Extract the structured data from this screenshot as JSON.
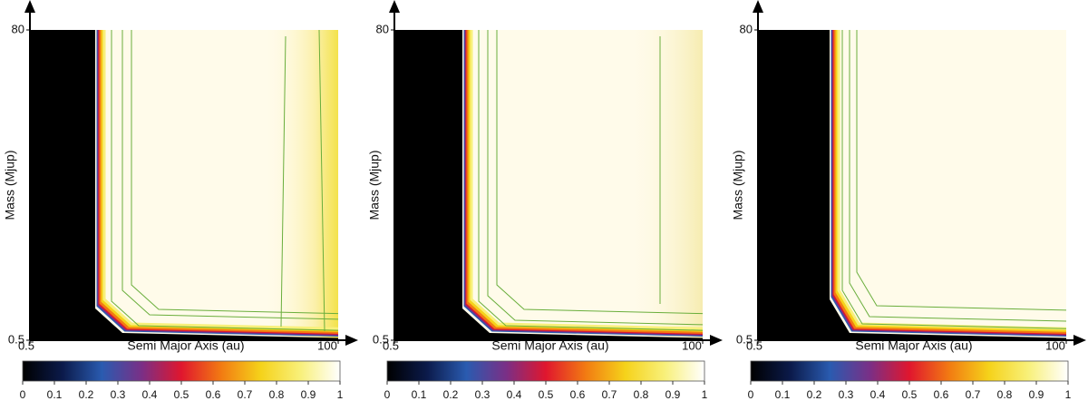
{
  "chart_data": [
    {
      "type": "heatmap",
      "xlabel": "Semi Major Axis (au)",
      "ylabel": "Mass (Mjup)",
      "xlim": [
        0.5,
        100
      ],
      "ylim": [
        0.5,
        80
      ],
      "xticks": [
        0.5,
        100
      ],
      "yticks": [
        0.5,
        80
      ],
      "colorbar_lim": [
        0,
        1
      ],
      "colorbar_ticks": [
        0,
        0.1,
        0.2,
        0.3,
        0.4,
        0.5,
        0.6,
        0.7,
        0.8,
        0.9,
        1
      ],
      "colormap": [
        "#000000",
        "#0b1a4a",
        "#2a5bb0",
        "#7a2f86",
        "#e0162e",
        "#f27a12",
        "#f5d21a",
        "#f8f07a",
        "#ffffff"
      ]
    },
    {
      "type": "heatmap",
      "xlabel": "Semi Major Axis (au)",
      "ylabel": "Mass (Mjup)",
      "xlim": [
        0.5,
        100
      ],
      "ylim": [
        0.5,
        80
      ],
      "xticks": [
        0.5,
        100
      ],
      "yticks": [
        0.5,
        80
      ],
      "colorbar_lim": [
        0,
        1
      ],
      "colorbar_ticks": [
        0,
        0.1,
        0.2,
        0.3,
        0.4,
        0.5,
        0.6,
        0.7,
        0.8,
        0.9,
        1
      ],
      "colormap": [
        "#000000",
        "#0b1a4a",
        "#2a5bb0",
        "#7a2f86",
        "#e0162e",
        "#f27a12",
        "#f5d21a",
        "#f8f07a",
        "#ffffff"
      ]
    },
    {
      "type": "heatmap",
      "xlabel": "Semi Major Axis (au)",
      "ylabel": "Mass (Mjup)",
      "xlim": [
        0.5,
        100
      ],
      "ylim": [
        0.5,
        80
      ],
      "xticks": [
        0.5,
        100
      ],
      "yticks": [
        0.5,
        80
      ],
      "colorbar_lim": [
        0,
        1
      ],
      "colorbar_ticks": [
        0,
        0.1,
        0.2,
        0.3,
        0.4,
        0.5,
        0.6,
        0.7,
        0.8,
        0.9,
        1
      ],
      "colormap": [
        "#000000",
        "#0b1a4a",
        "#2a5bb0",
        "#7a2f86",
        "#e0162e",
        "#f27a12",
        "#f5d21a",
        "#f8f07a",
        "#ffffff"
      ]
    }
  ]
}
